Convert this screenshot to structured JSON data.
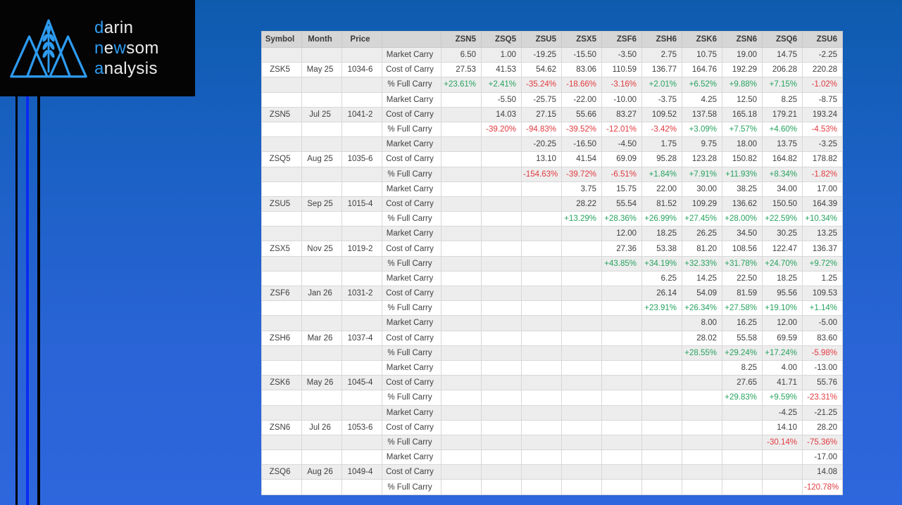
{
  "logo": {
    "lines": [
      {
        "segments": [
          {
            "text": "d",
            "color": "accent"
          },
          {
            "text": "arin",
            "color": "light"
          }
        ]
      },
      {
        "segments": [
          {
            "text": "n",
            "color": "accent"
          },
          {
            "text": "e",
            "color": "light"
          },
          {
            "text": "w",
            "color": "accent"
          },
          {
            "text": "som",
            "color": "light"
          }
        ]
      },
      {
        "segments": [
          {
            "text": "a",
            "color": "accent"
          },
          {
            "text": "nalysis",
            "color": "light"
          }
        ]
      }
    ],
    "accent_color": "#2d9bf0",
    "mark": "mountains-wheat-logo"
  },
  "colors": {
    "background_top": "#0e5bae",
    "background_bottom": "#2e66dd",
    "stripe_blue": "#0b2af2",
    "positive": "#27a35f",
    "negative": "#e23a40",
    "header_bg": "#d6d6d6",
    "zebra_bg": "#ededed"
  },
  "table": {
    "header_left": [
      "Symbol",
      "Month",
      "Price",
      ""
    ],
    "columns": [
      "ZSN5",
      "ZSQ5",
      "ZSU5",
      "ZSX5",
      "ZSF6",
      "ZSH6",
      "ZSK6",
      "ZSN6",
      "ZSQ6",
      "ZSU6"
    ],
    "row_labels": [
      "Market Carry",
      "Cost of Carry",
      "% Full Carry"
    ],
    "groups": [
      {
        "symbol": "ZSK5",
        "month": "May 25",
        "price": "1034-6",
        "market": [
          "6.50",
          "1.00",
          "-19.25",
          "-15.50",
          "-3.50",
          "2.75",
          "10.75",
          "19.00",
          "14.75",
          "-2.25"
        ],
        "cost": [
          "27.53",
          "41.53",
          "54.62",
          "83.06",
          "110.59",
          "136.77",
          "164.76",
          "192.29",
          "206.28",
          "220.28"
        ],
        "pct": [
          "+23.61%",
          "+2.41%",
          "-35.24%",
          "-18.66%",
          "-3.16%",
          "+2.01%",
          "+6.52%",
          "+9.88%",
          "+7.15%",
          "-1.02%"
        ]
      },
      {
        "symbol": "ZSN5",
        "month": "Jul 25",
        "price": "1041-2",
        "market": [
          "",
          "-5.50",
          "-25.75",
          "-22.00",
          "-10.00",
          "-3.75",
          "4.25",
          "12.50",
          "8.25",
          "-8.75"
        ],
        "cost": [
          "",
          "14.03",
          "27.15",
          "55.66",
          "83.27",
          "109.52",
          "137.58",
          "165.18",
          "179.21",
          "193.24"
        ],
        "pct": [
          "",
          "-39.20%",
          "-94.83%",
          "-39.52%",
          "-12.01%",
          "-3.42%",
          "+3.09%",
          "+7.57%",
          "+4.60%",
          "-4.53%"
        ]
      },
      {
        "symbol": "ZSQ5",
        "month": "Aug 25",
        "price": "1035-6",
        "market": [
          "",
          "",
          "-20.25",
          "-16.50",
          "-4.50",
          "1.75",
          "9.75",
          "18.00",
          "13.75",
          "-3.25"
        ],
        "cost": [
          "",
          "",
          "13.10",
          "41.54",
          "69.09",
          "95.28",
          "123.28",
          "150.82",
          "164.82",
          "178.82"
        ],
        "pct": [
          "",
          "",
          "-154.63%",
          "-39.72%",
          "-6.51%",
          "+1.84%",
          "+7.91%",
          "+11.93%",
          "+8.34%",
          "-1.82%"
        ]
      },
      {
        "symbol": "ZSU5",
        "month": "Sep 25",
        "price": "1015-4",
        "market": [
          "",
          "",
          "",
          "3.75",
          "15.75",
          "22.00",
          "30.00",
          "38.25",
          "34.00",
          "17.00"
        ],
        "cost": [
          "",
          "",
          "",
          "28.22",
          "55.54",
          "81.52",
          "109.29",
          "136.62",
          "150.50",
          "164.39"
        ],
        "pct": [
          "",
          "",
          "",
          "+13.29%",
          "+28.36%",
          "+26.99%",
          "+27.45%",
          "+28.00%",
          "+22.59%",
          "+10.34%"
        ]
      },
      {
        "symbol": "ZSX5",
        "month": "Nov 25",
        "price": "1019-2",
        "market": [
          "",
          "",
          "",
          "",
          "12.00",
          "18.25",
          "26.25",
          "34.50",
          "30.25",
          "13.25"
        ],
        "cost": [
          "",
          "",
          "",
          "",
          "27.36",
          "53.38",
          "81.20",
          "108.56",
          "122.47",
          "136.37"
        ],
        "pct": [
          "",
          "",
          "",
          "",
          "+43.85%",
          "+34.19%",
          "+32.33%",
          "+31.78%",
          "+24.70%",
          "+9.72%"
        ]
      },
      {
        "symbol": "ZSF6",
        "month": "Jan 26",
        "price": "1031-2",
        "market": [
          "",
          "",
          "",
          "",
          "",
          "6.25",
          "14.25",
          "22.50",
          "18.25",
          "1.25"
        ],
        "cost": [
          "",
          "",
          "",
          "",
          "",
          "26.14",
          "54.09",
          "81.59",
          "95.56",
          "109.53"
        ],
        "pct": [
          "",
          "",
          "",
          "",
          "",
          "+23.91%",
          "+26.34%",
          "+27.58%",
          "+19.10%",
          "+1.14%"
        ]
      },
      {
        "symbol": "ZSH6",
        "month": "Mar 26",
        "price": "1037-4",
        "market": [
          "",
          "",
          "",
          "",
          "",
          "",
          "8.00",
          "16.25",
          "12.00",
          "-5.00"
        ],
        "cost": [
          "",
          "",
          "",
          "",
          "",
          "",
          "28.02",
          "55.58",
          "69.59",
          "83.60"
        ],
        "pct": [
          "",
          "",
          "",
          "",
          "",
          "",
          "+28.55%",
          "+29.24%",
          "+17.24%",
          "-5.98%"
        ]
      },
      {
        "symbol": "ZSK6",
        "month": "May 26",
        "price": "1045-4",
        "market": [
          "",
          "",
          "",
          "",
          "",
          "",
          "",
          "8.25",
          "4.00",
          "-13.00"
        ],
        "cost": [
          "",
          "",
          "",
          "",
          "",
          "",
          "",
          "27.65",
          "41.71",
          "55.76"
        ],
        "pct": [
          "",
          "",
          "",
          "",
          "",
          "",
          "",
          "+29.83%",
          "+9.59%",
          "-23.31%"
        ]
      },
      {
        "symbol": "ZSN6",
        "month": "Jul 26",
        "price": "1053-6",
        "market": [
          "",
          "",
          "",
          "",
          "",
          "",
          "",
          "",
          "-4.25",
          "-21.25"
        ],
        "cost": [
          "",
          "",
          "",
          "",
          "",
          "",
          "",
          "",
          "14.10",
          "28.20"
        ],
        "pct": [
          "",
          "",
          "",
          "",
          "",
          "",
          "",
          "",
          "-30.14%",
          "-75.36%"
        ]
      },
      {
        "symbol": "ZSQ6",
        "month": "Aug 26",
        "price": "1049-4",
        "market": [
          "",
          "",
          "",
          "",
          "",
          "",
          "",
          "",
          "",
          "-17.00"
        ],
        "cost": [
          "",
          "",
          "",
          "",
          "",
          "",
          "",
          "",
          "",
          "14.08"
        ],
        "pct": [
          "",
          "",
          "",
          "",
          "",
          "",
          "",
          "",
          "",
          "-120.78%"
        ]
      }
    ]
  }
}
